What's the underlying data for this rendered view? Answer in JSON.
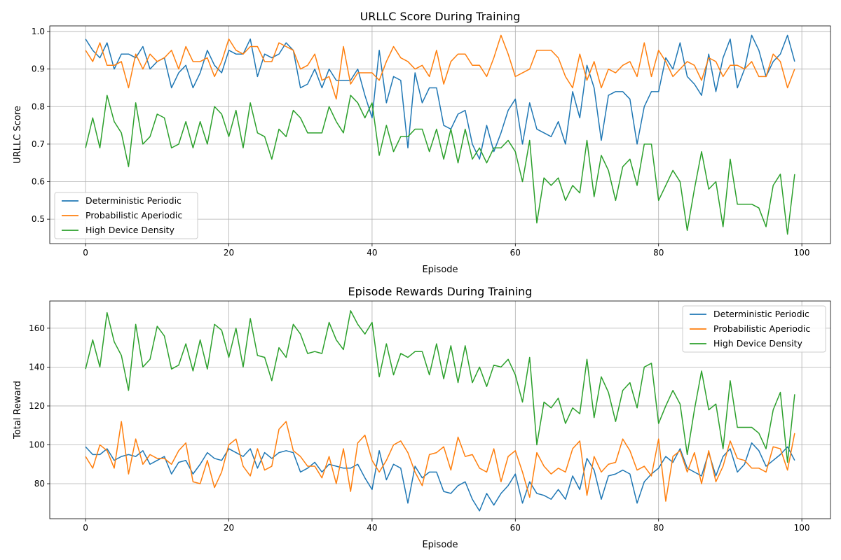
{
  "colors": {
    "Deterministic Periodic": "#1f77b4",
    "Probabilistic Aperiodic": "#ff7f0e",
    "High Device Density": "#2ca02c"
  },
  "chart_data": [
    {
      "type": "line",
      "title": "URLLC Score During Training",
      "xlabel": "Episode",
      "ylabel": "URLLC Score",
      "xlim": [
        -5,
        104
      ],
      "ylim": [
        0.435,
        1.015
      ],
      "xticks": [
        0,
        20,
        40,
        60,
        80,
        100
      ],
      "yticks": [
        0.5,
        0.6,
        0.7,
        0.8,
        0.9,
        1.0
      ],
      "ytick_labels": [
        "0.5",
        "0.6",
        "0.7",
        "0.8",
        "0.9",
        "1.0"
      ],
      "grid": true,
      "legend_position": "lower-left",
      "series": [
        {
          "name": "Deterministic Periodic",
          "values": [
            0.98,
            0.95,
            0.93,
            0.97,
            0.9,
            0.94,
            0.94,
            0.93,
            0.96,
            0.9,
            0.92,
            0.93,
            0.85,
            0.89,
            0.91,
            0.85,
            0.89,
            0.95,
            0.91,
            0.89,
            0.95,
            0.94,
            0.94,
            0.98,
            0.88,
            0.94,
            0.93,
            0.94,
            0.97,
            0.95,
            0.85,
            0.86,
            0.9,
            0.85,
            0.9,
            0.87,
            0.87,
            0.87,
            0.9,
            0.83,
            0.77,
            0.95,
            0.81,
            0.88,
            0.87,
            0.69,
            0.89,
            0.81,
            0.85,
            0.85,
            0.75,
            0.74,
            0.78,
            0.79,
            0.7,
            0.66,
            0.75,
            0.68,
            0.73,
            0.79,
            0.82,
            0.7,
            0.81,
            0.74,
            0.73,
            0.72,
            0.76,
            0.7,
            0.84,
            0.77,
            0.91,
            0.85,
            0.71,
            0.83,
            0.84,
            0.84,
            0.82,
            0.7,
            0.8,
            0.84,
            0.84,
            0.93,
            0.9,
            0.97,
            0.88,
            0.86,
            0.83,
            0.94,
            0.84,
            0.93,
            0.98,
            0.85,
            0.9,
            0.99,
            0.95,
            0.88,
            0.92,
            0.94,
            0.99,
            0.92
          ]
        },
        {
          "name": "Probabilistic Aperiodic",
          "values": [
            0.95,
            0.92,
            0.97,
            0.91,
            0.91,
            0.92,
            0.85,
            0.94,
            0.9,
            0.94,
            0.92,
            0.93,
            0.95,
            0.9,
            0.96,
            0.92,
            0.92,
            0.93,
            0.88,
            0.92,
            0.98,
            0.95,
            0.94,
            0.96,
            0.96,
            0.92,
            0.92,
            0.97,
            0.96,
            0.95,
            0.9,
            0.91,
            0.94,
            0.87,
            0.88,
            0.82,
            0.96,
            0.86,
            0.89,
            0.89,
            0.89,
            0.87,
            0.92,
            0.96,
            0.93,
            0.92,
            0.9,
            0.91,
            0.88,
            0.95,
            0.86,
            0.92,
            0.94,
            0.94,
            0.91,
            0.91,
            0.88,
            0.93,
            0.99,
            0.94,
            0.88,
            0.89,
            0.9,
            0.95,
            0.95,
            0.95,
            0.93,
            0.88,
            0.85,
            0.94,
            0.87,
            0.92,
            0.85,
            0.9,
            0.89,
            0.91,
            0.92,
            0.88,
            0.97,
            0.88,
            0.95,
            0.92,
            0.88,
            0.9,
            0.92,
            0.91,
            0.87,
            0.93,
            0.92,
            0.88,
            0.91,
            0.91,
            0.9,
            0.92,
            0.88,
            0.88,
            0.94,
            0.92,
            0.85,
            0.9
          ]
        },
        {
          "name": "High Device Density",
          "values": [
            0.69,
            0.77,
            0.69,
            0.83,
            0.76,
            0.73,
            0.64,
            0.81,
            0.7,
            0.72,
            0.78,
            0.77,
            0.69,
            0.7,
            0.76,
            0.69,
            0.76,
            0.7,
            0.8,
            0.78,
            0.72,
            0.79,
            0.69,
            0.81,
            0.73,
            0.72,
            0.66,
            0.74,
            0.72,
            0.79,
            0.77,
            0.73,
            0.73,
            0.73,
            0.8,
            0.76,
            0.73,
            0.83,
            0.81,
            0.77,
            0.81,
            0.67,
            0.75,
            0.68,
            0.72,
            0.72,
            0.74,
            0.74,
            0.68,
            0.74,
            0.66,
            0.74,
            0.65,
            0.74,
            0.66,
            0.69,
            0.65,
            0.69,
            0.69,
            0.71,
            0.68,
            0.6,
            0.71,
            0.49,
            0.61,
            0.59,
            0.61,
            0.55,
            0.59,
            0.57,
            0.71,
            0.56,
            0.67,
            0.63,
            0.55,
            0.64,
            0.66,
            0.59,
            0.7,
            0.7,
            0.55,
            0.59,
            0.63,
            0.6,
            0.47,
            0.58,
            0.68,
            0.58,
            0.6,
            0.48,
            0.66,
            0.54,
            0.54,
            0.54,
            0.53,
            0.48,
            0.59,
            0.62,
            0.46,
            0.62
          ]
        }
      ]
    },
    {
      "type": "line",
      "title": "Episode Rewards During Training",
      "xlabel": "Episode",
      "ylabel": "Total Reward",
      "xlim": [
        -5,
        104
      ],
      "ylim": [
        62,
        174
      ],
      "xticks": [
        0,
        20,
        40,
        60,
        80,
        100
      ],
      "yticks": [
        80,
        100,
        120,
        140,
        160
      ],
      "ytick_labels": [
        "80",
        "100",
        "120",
        "140",
        "160"
      ],
      "grid": true,
      "legend_position": "upper-right",
      "series": [
        {
          "name": "Deterministic Periodic",
          "values": [
            99,
            95,
            95,
            98,
            92,
            94,
            95,
            94,
            97,
            90,
            92,
            94,
            85,
            91,
            92,
            85,
            90,
            96,
            93,
            92,
            98,
            96,
            94,
            98,
            88,
            96,
            93,
            96,
            97,
            96,
            86,
            88,
            91,
            86,
            90,
            89,
            88,
            88,
            90,
            83,
            77,
            97,
            82,
            90,
            88,
            70,
            89,
            83,
            86,
            86,
            76,
            75,
            79,
            81,
            72,
            66,
            75,
            69,
            75,
            79,
            85,
            70,
            81,
            75,
            74,
            72,
            77,
            72,
            84,
            77,
            93,
            87,
            72,
            84,
            85,
            87,
            85,
            70,
            81,
            85,
            88,
            94,
            91,
            98,
            88,
            86,
            84,
            96,
            84,
            94,
            98,
            86,
            90,
            101,
            97,
            89,
            92,
            95,
            99,
            92
          ]
        },
        {
          "name": "Probabilistic Aperiodic",
          "values": [
            94,
            88,
            100,
            97,
            88,
            112,
            85,
            103,
            90,
            95,
            93,
            93,
            90,
            97,
            101,
            81,
            80,
            92,
            78,
            86,
            100,
            103,
            89,
            84,
            98,
            87,
            89,
            108,
            112,
            97,
            94,
            89,
            89,
            83,
            94,
            80,
            98,
            76,
            101,
            105,
            92,
            86,
            92,
            100,
            102,
            96,
            86,
            79,
            95,
            96,
            99,
            87,
            104,
            94,
            95,
            88,
            86,
            98,
            81,
            94,
            97,
            86,
            73,
            96,
            89,
            85,
            88,
            86,
            98,
            102,
            74,
            94,
            86,
            90,
            91,
            103,
            97,
            87,
            89,
            84,
            103,
            71,
            94,
            97,
            86,
            96,
            80,
            97,
            81,
            89,
            102,
            93,
            92,
            88,
            88,
            86,
            99,
            98,
            87,
            106
          ]
        },
        {
          "name": "High Device Density",
          "values": [
            139,
            154,
            140,
            168,
            153,
            146,
            128,
            162,
            140,
            144,
            161,
            156,
            139,
            141,
            152,
            138,
            154,
            139,
            162,
            159,
            145,
            160,
            140,
            165,
            146,
            145,
            133,
            150,
            145,
            162,
            157,
            147,
            148,
            147,
            163,
            154,
            149,
            169,
            162,
            157,
            163,
            135,
            152,
            136,
            147,
            145,
            148,
            148,
            136,
            152,
            134,
            151,
            132,
            151,
            132,
            140,
            130,
            141,
            140,
            144,
            136,
            122,
            145,
            100,
            122,
            119,
            124,
            111,
            119,
            116,
            144,
            114,
            135,
            127,
            112,
            128,
            132,
            119,
            140,
            142,
            111,
            120,
            128,
            121,
            95,
            118,
            138,
            118,
            121,
            98,
            133,
            109,
            109,
            109,
            106,
            98,
            118,
            127,
            91,
            126
          ]
        }
      ]
    }
  ]
}
